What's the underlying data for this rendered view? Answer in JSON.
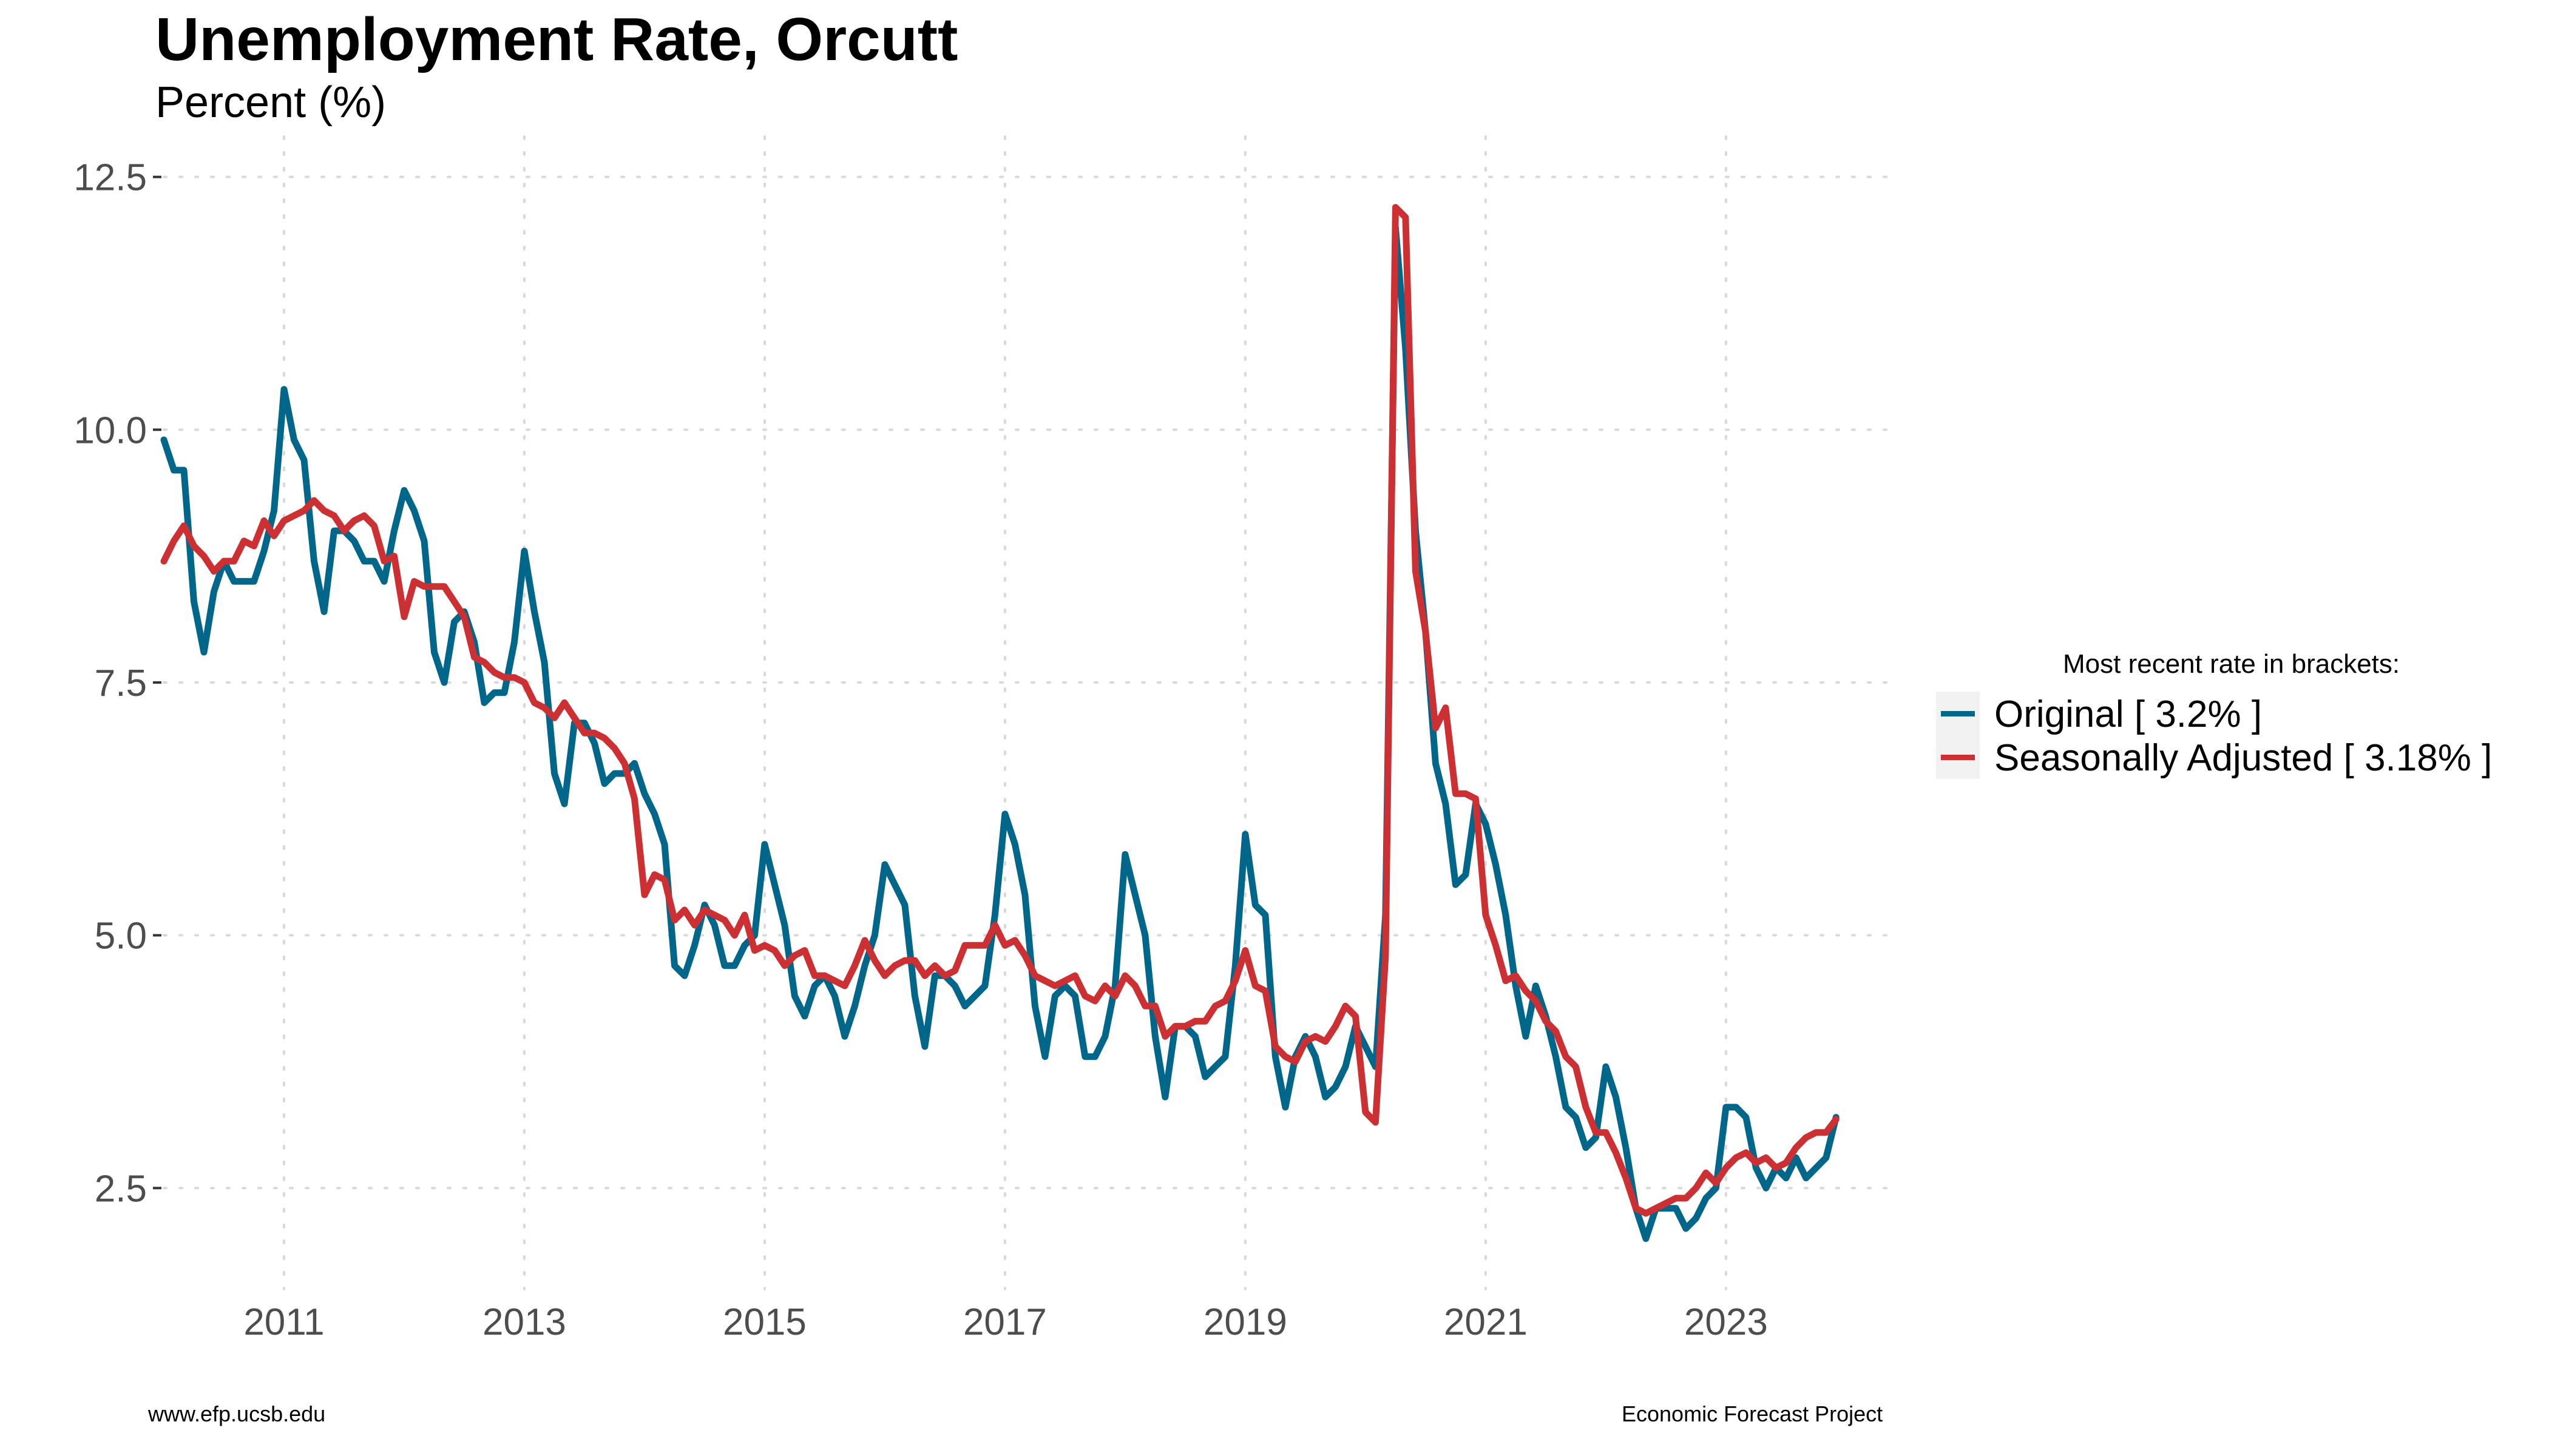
{
  "chart_data": {
    "type": "line",
    "title": "Unemployment Rate, Orcutt",
    "subtitle": "Percent (%)",
    "xlabel": "",
    "ylabel": "",
    "x_start": "2010-01",
    "x_frequency": "monthly",
    "xlim": [
      2010.0,
      2024.42
    ],
    "ylim": [
      1.5,
      12.9
    ],
    "x_ticks": [
      2011,
      2013,
      2015,
      2017,
      2019,
      2021,
      2023
    ],
    "y_ticks": [
      2.5,
      5.0,
      7.5,
      10.0,
      12.5
    ],
    "x_tick_labels": [
      "2011",
      "2013",
      "2015",
      "2017",
      "2019",
      "2021",
      "2023"
    ],
    "y_tick_labels": [
      "2.5",
      "5.0",
      "7.5",
      "10.0",
      "12.5"
    ],
    "grid": true,
    "legend_title": "Most recent rate in brackets:",
    "legend_position": "right",
    "series": [
      {
        "name": "Original [ 3.2% ]",
        "color": "#00678a",
        "values": [
          9.9,
          9.6,
          9.6,
          8.3,
          7.8,
          8.4,
          8.7,
          8.5,
          8.5,
          8.5,
          8.8,
          9.2,
          10.4,
          9.9,
          9.7,
          8.7,
          8.2,
          9.0,
          9.0,
          8.9,
          8.7,
          8.7,
          8.5,
          9.0,
          9.4,
          9.2,
          8.9,
          7.8,
          7.5,
          8.1,
          8.2,
          7.9,
          7.3,
          7.4,
          7.4,
          7.9,
          8.8,
          8.2,
          7.7,
          6.6,
          6.3,
          7.1,
          7.1,
          6.9,
          6.5,
          6.6,
          6.6,
          6.7,
          6.4,
          6.2,
          5.9,
          4.7,
          4.6,
          4.9,
          5.3,
          5.1,
          4.7,
          4.7,
          4.9,
          5.0,
          5.9,
          5.5,
          5.1,
          4.4,
          4.2,
          4.5,
          4.6,
          4.4,
          4.0,
          4.3,
          4.7,
          5.0,
          5.7,
          5.5,
          5.3,
          4.4,
          3.9,
          4.6,
          4.6,
          4.5,
          4.3,
          4.4,
          4.5,
          5.2,
          6.2,
          5.9,
          5.4,
          4.3,
          3.8,
          4.4,
          4.5,
          4.4,
          3.8,
          3.8,
          4.0,
          4.5,
          5.8,
          5.4,
          5.0,
          4.0,
          3.4,
          4.1,
          4.1,
          4.0,
          3.6,
          3.7,
          3.8,
          4.7,
          6.0,
          5.3,
          5.2,
          3.8,
          3.3,
          3.8,
          4.0,
          3.8,
          3.4,
          3.5,
          3.7,
          4.1,
          3.9,
          3.7,
          5.2,
          12.0,
          10.8,
          9.0,
          8.0,
          6.7,
          6.3,
          5.5,
          5.6,
          6.3,
          6.1,
          5.7,
          5.2,
          4.5,
          4.0,
          4.5,
          4.2,
          3.8,
          3.3,
          3.2,
          2.9,
          3.0,
          3.7,
          3.4,
          2.9,
          2.3,
          2.0,
          2.3,
          2.3,
          2.3,
          2.1,
          2.2,
          2.4,
          2.5,
          3.3,
          3.3,
          3.2,
          2.7,
          2.5,
          2.7,
          2.6,
          2.8,
          2.6,
          2.7,
          2.8,
          3.2
        ]
      },
      {
        "name": "Seasonally Adjusted [ 3.18% ]",
        "color": "#cc3033",
        "values": [
          8.7,
          8.9,
          9.05,
          8.85,
          8.75,
          8.6,
          8.7,
          8.7,
          8.9,
          8.85,
          9.1,
          8.95,
          9.1,
          9.15,
          9.2,
          9.3,
          9.2,
          9.15,
          9.0,
          9.1,
          9.15,
          9.05,
          8.7,
          8.75,
          8.15,
          8.5,
          8.45,
          8.45,
          8.45,
          8.3,
          8.15,
          7.75,
          7.7,
          7.6,
          7.55,
          7.55,
          7.5,
          7.3,
          7.25,
          7.15,
          7.3,
          7.15,
          7.0,
          7.0,
          6.95,
          6.85,
          6.7,
          6.35,
          5.4,
          5.6,
          5.55,
          5.15,
          5.25,
          5.1,
          5.25,
          5.2,
          5.15,
          5.0,
          5.2,
          4.85,
          4.9,
          4.85,
          4.7,
          4.8,
          4.85,
          4.6,
          4.6,
          4.55,
          4.5,
          4.7,
          4.95,
          4.75,
          4.6,
          4.7,
          4.75,
          4.75,
          4.6,
          4.7,
          4.6,
          4.65,
          4.9,
          4.9,
          4.9,
          5.1,
          4.9,
          4.95,
          4.8,
          4.6,
          4.55,
          4.5,
          4.55,
          4.6,
          4.4,
          4.35,
          4.5,
          4.4,
          4.6,
          4.5,
          4.3,
          4.3,
          4.0,
          4.1,
          4.1,
          4.15,
          4.15,
          4.3,
          4.35,
          4.55,
          4.85,
          4.5,
          4.45,
          3.9,
          3.8,
          3.75,
          3.95,
          4.0,
          3.95,
          4.1,
          4.3,
          4.2,
          3.25,
          3.15,
          4.8,
          12.2,
          12.1,
          8.6,
          8.0,
          7.05,
          7.25,
          6.4,
          6.4,
          6.35,
          5.2,
          4.9,
          4.55,
          4.6,
          4.45,
          4.35,
          4.15,
          4.05,
          3.8,
          3.7,
          3.3,
          3.05,
          3.05,
          2.85,
          2.6,
          2.3,
          2.25,
          2.3,
          2.35,
          2.4,
          2.4,
          2.5,
          2.65,
          2.55,
          2.7,
          2.8,
          2.85,
          2.75,
          2.8,
          2.7,
          2.75,
          2.9,
          3.0,
          3.05,
          3.05,
          3.18
        ]
      }
    ]
  },
  "footer": {
    "left": "www.efp.ucsb.edu",
    "right": "Economic Forecast Project"
  }
}
